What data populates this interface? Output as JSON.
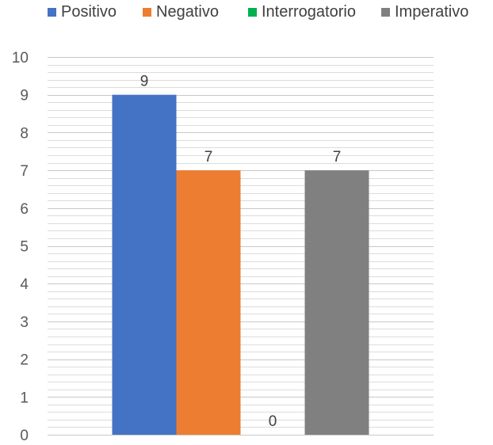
{
  "chart_data": {
    "type": "bar",
    "categories": [
      ""
    ],
    "series": [
      {
        "name": "Positivo",
        "values": [
          9
        ],
        "color": "#4472C4"
      },
      {
        "name": "Negativo",
        "values": [
          7
        ],
        "color": "#ED7D31"
      },
      {
        "name": "Interrogatorio",
        "values": [
          0
        ],
        "color": "#00B050"
      },
      {
        "name": "Imperativo",
        "values": [
          7
        ],
        "color": "#808080"
      }
    ],
    "data_labels": [
      "9",
      "7",
      "0",
      "7"
    ],
    "y_ticks": [
      "0",
      "1",
      "2",
      "3",
      "4",
      "5",
      "6",
      "7",
      "8",
      "9",
      "10"
    ],
    "ylim": [
      0,
      10
    ],
    "minor_grid_step": 0.2,
    "grid": true,
    "legend_position": "top",
    "title": "",
    "xlabel": "",
    "ylabel": ""
  }
}
